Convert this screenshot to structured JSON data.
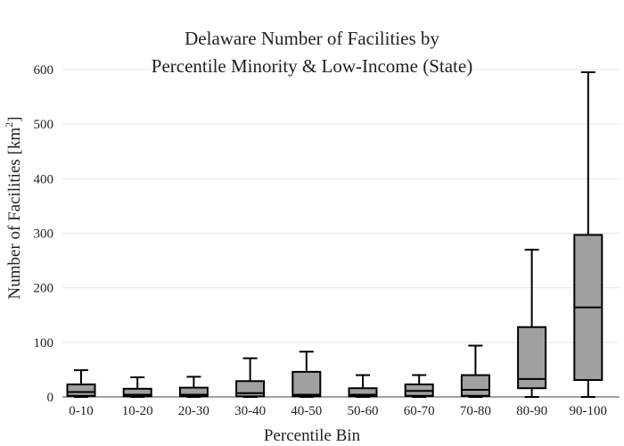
{
  "chart_data": {
    "type": "box",
    "title_lines": [
      "Delaware Number of Facilities by",
      "Percentile Minority & Low-Income (State)"
    ],
    "xlabel": "Percentile Bin",
    "ylabel_main": "Number of Facilities  [km",
    "ylabel_sup": "2",
    "ylabel_end": "]",
    "ylim": [
      0,
      620
    ],
    "yticks": [
      0,
      100,
      200,
      300,
      400,
      500,
      600
    ],
    "grid": true,
    "categories": [
      "0-10",
      "10-20",
      "20-30",
      "30-40",
      "40-50",
      "50-60",
      "60-70",
      "70-80",
      "80-90",
      "90-100"
    ],
    "boxes": [
      {
        "min": 0,
        "q1": 2,
        "median": 9,
        "q3": 23,
        "max": 49
      },
      {
        "min": 0,
        "q1": 1,
        "median": 4,
        "q3": 15,
        "max": 36
      },
      {
        "min": 0,
        "q1": 1,
        "median": 4,
        "q3": 17,
        "max": 37
      },
      {
        "min": 0,
        "q1": 1,
        "median": 7,
        "q3": 29,
        "max": 71
      },
      {
        "min": 0,
        "q1": 1,
        "median": 4,
        "q3": 46,
        "max": 83
      },
      {
        "min": 0,
        "q1": 1,
        "median": 4,
        "q3": 16,
        "max": 40
      },
      {
        "min": 0,
        "q1": 2,
        "median": 11,
        "q3": 23,
        "max": 40
      },
      {
        "min": 0,
        "q1": 2,
        "median": 13,
        "q3": 40,
        "max": 94
      },
      {
        "min": 0,
        "q1": 16,
        "median": 33,
        "q3": 128,
        "max": 270
      },
      {
        "min": 0,
        "q1": 31,
        "median": 164,
        "q3": 297,
        "max": 595
      }
    ],
    "colors": {
      "box_fill": "#a0a0a0",
      "box_stroke": "#000000"
    }
  }
}
